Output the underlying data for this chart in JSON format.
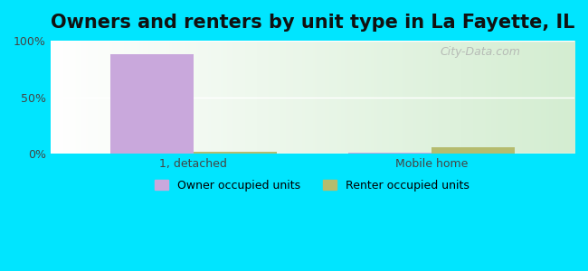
{
  "title": "Owners and renters by unit type in La Fayette, IL",
  "categories": [
    "1, detached",
    "Mobile home"
  ],
  "owner_values": [
    88,
    1
  ],
  "renter_values": [
    2,
    6
  ],
  "owner_color": "#c9a8dc",
  "renter_color": "#b5bc6e",
  "bar_width": 0.35,
  "ylim": [
    0,
    100
  ],
  "yticks": [
    0,
    50,
    100
  ],
  "ytick_labels": [
    "0%",
    "50%",
    "100%"
  ],
  "legend_owner": "Owner occupied units",
  "legend_renter": "Renter occupied units",
  "background_outer": "#00e5ff",
  "watermark": "City-Data.com",
  "title_fontsize": 15,
  "tick_fontsize": 9
}
